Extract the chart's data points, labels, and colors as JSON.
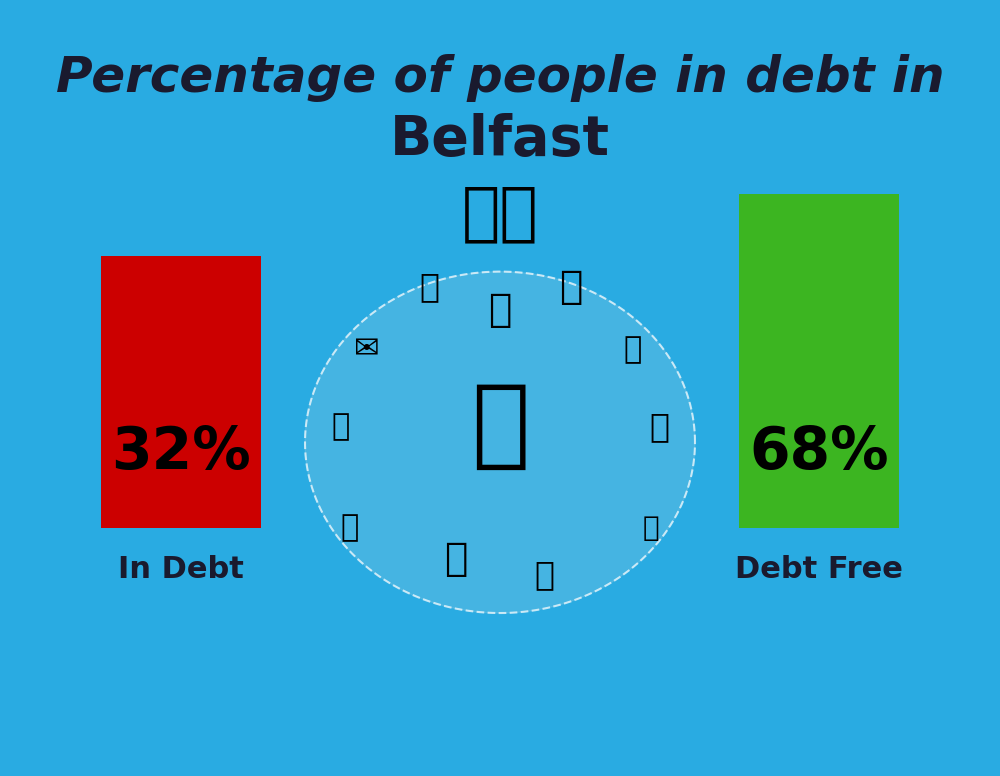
{
  "title_line1": "Percentage of people in debt in",
  "title_line2": "Belfast",
  "background_color": "#29ABE2",
  "bar1_value": 32,
  "bar1_label": "32%",
  "bar1_color": "#CC0000",
  "bar1_text": "In Debt",
  "bar2_value": 68,
  "bar2_label": "68%",
  "bar2_color": "#3CB521",
  "bar2_text": "Debt Free",
  "title_fontsize": 36,
  "title2_fontsize": 40,
  "label_fontsize": 30,
  "pct_fontsize": 42,
  "bar_label_fontsize": 22,
  "title_color": "#1a1a2e",
  "text_color": "#1a1a2e"
}
